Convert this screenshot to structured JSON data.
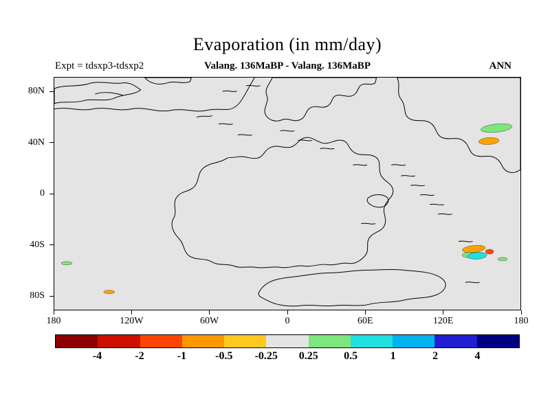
{
  "title": "Evaporation (in mm/day)",
  "header": {
    "experiment": "Expt = tdsxp3-tdsxp2",
    "subtitle": "Valang. 136MaBP - Valang. 136MaBP",
    "season": "ANN"
  },
  "map": {
    "background_color": "#e4e4e4",
    "lat_ticks": [
      "80N",
      "40N",
      "0",
      "40S",
      "80S"
    ],
    "lon_ticks": [
      "180",
      "120W",
      "60W",
      "0",
      "60E",
      "120E",
      "180"
    ]
  },
  "colorbar": {
    "boundaries": [
      "-4",
      "-2",
      "-1",
      "-0.5",
      "-0.25",
      "0.25",
      "0.5",
      "1",
      "2",
      "4"
    ],
    "colors": [
      "#8b0000",
      "#cc1100",
      "#ff4400",
      "#ff9900",
      "#ffc81e",
      "#e4e4e4",
      "#7de67d",
      "#20e0e0",
      "#00b2ee",
      "#2020d0",
      "#000080"
    ]
  },
  "chart_data": {
    "type": "heatmap",
    "title": "Evaporation (in mm/day)",
    "subtitle": "Valang. 136MaBP - Valang. 136MaBP",
    "experiment_label": "Expt = tdsxp3-tdsxp2",
    "season": "ANN",
    "variable": "Evaporation difference between experiments tdsxp3 and tdsxp2",
    "units": "mm/day",
    "projection": "equirectangular latitude-longitude map, Valanginian (136 MaBP) paleogeography coastlines",
    "x_axis": {
      "ticks": [
        "180",
        "120W",
        "60W",
        "0",
        "60E",
        "120E",
        "180"
      ],
      "range_deg": [
        -180,
        180
      ]
    },
    "y_axis": {
      "ticks": [
        "80N",
        "40N",
        "0",
        "40S",
        "80S"
      ],
      "range_deg": [
        -90,
        90
      ]
    },
    "levels": [
      -4,
      -2,
      -1,
      -0.5,
      -0.25,
      0.25,
      0.5,
      1,
      2,
      4
    ],
    "palette": [
      "#8b0000",
      "#cc1100",
      "#ff4400",
      "#ff9900",
      "#ffc81e",
      "#e4e4e4",
      "#7de67d",
      "#20e0e0",
      "#00b2ee",
      "#2020d0",
      "#000080"
    ],
    "legend_position": "horizontal colorbar below map",
    "grid": false,
    "field_summary": "Difference is within -0.25 to 0.25 mm/day (light gray) over nearly the entire globe; only a few small localized anomalies appear.",
    "anomaly_regions": [
      {
        "approx_lat": "50N",
        "approx_lon": "150E",
        "range_mm_day": "0.25 to 0.5",
        "color": "light green"
      },
      {
        "approx_lat": "42N",
        "approx_lon": "153E",
        "range_mm_day": "-0.5 to -0.25",
        "color": "orange"
      },
      {
        "approx_lat": "43S",
        "approx_lon": "143E",
        "range_mm_day": "-1 to -0.25",
        "color": "orange / orange-red"
      },
      {
        "approx_lat": "47S",
        "approx_lon": "145E",
        "range_mm_day": "0.25 to 1",
        "color": "green / cyan"
      },
      {
        "approx_lat": "46S",
        "approx_lon": "165E",
        "range_mm_day": "0.25 to 0.5",
        "color": "light green"
      },
      {
        "approx_lat": "48S",
        "approx_lon": "171W",
        "range_mm_day": "0.25 to 0.5",
        "color": "light green"
      },
      {
        "approx_lat": "77S",
        "approx_lon": "138W",
        "range_mm_day": "-0.5 to -0.25",
        "color": "orange"
      }
    ]
  }
}
